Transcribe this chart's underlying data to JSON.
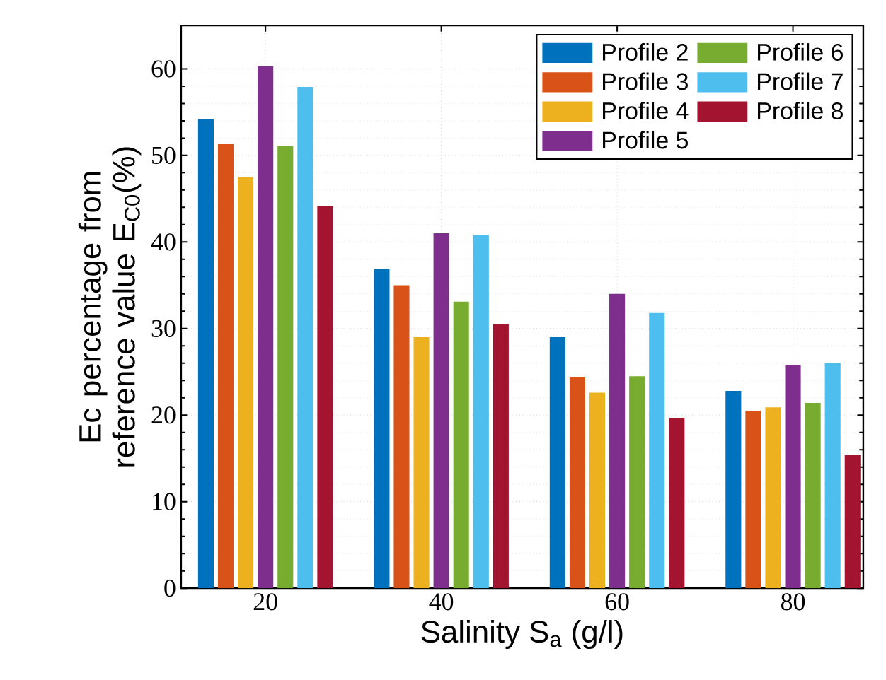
{
  "chart_data": {
    "type": "bar",
    "xlabel": "Salinity S$_{a}$ (g/l)",
    "ylabel": "Ec percentage from reference value E$_{C0}$(%)",
    "categories": [
      "20",
      "40",
      "60",
      "80"
    ],
    "series": [
      {
        "name": "Profile 2",
        "color": "#0072bd",
        "values": [
          54.2,
          36.9,
          29.0,
          22.8
        ]
      },
      {
        "name": "Profile 3",
        "color": "#d95319",
        "values": [
          51.3,
          35.0,
          24.4,
          20.5
        ]
      },
      {
        "name": "Profile 4",
        "color": "#edb120",
        "values": [
          47.5,
          29.0,
          22.6,
          20.9
        ]
      },
      {
        "name": "Profile  5",
        "color": "#7e2f8e",
        "values": [
          60.3,
          41.0,
          34.0,
          25.8
        ]
      },
      {
        "name": "Profile  6",
        "color": "#77ac30",
        "values": [
          51.1,
          33.1,
          24.5,
          21.4
        ]
      },
      {
        "name": "Profile  7",
        "color": "#4dbeee",
        "values": [
          57.9,
          40.8,
          31.8,
          26.0
        ]
      },
      {
        "name": "Profile  8",
        "color": "#a2142f",
        "values": [
          44.2,
          30.5,
          19.7,
          15.4
        ]
      }
    ],
    "ylim": [
      0,
      65
    ],
    "yticks": [
      0,
      10,
      20,
      30,
      40,
      50,
      60
    ],
    "grid": true,
    "legend": "top right"
  }
}
